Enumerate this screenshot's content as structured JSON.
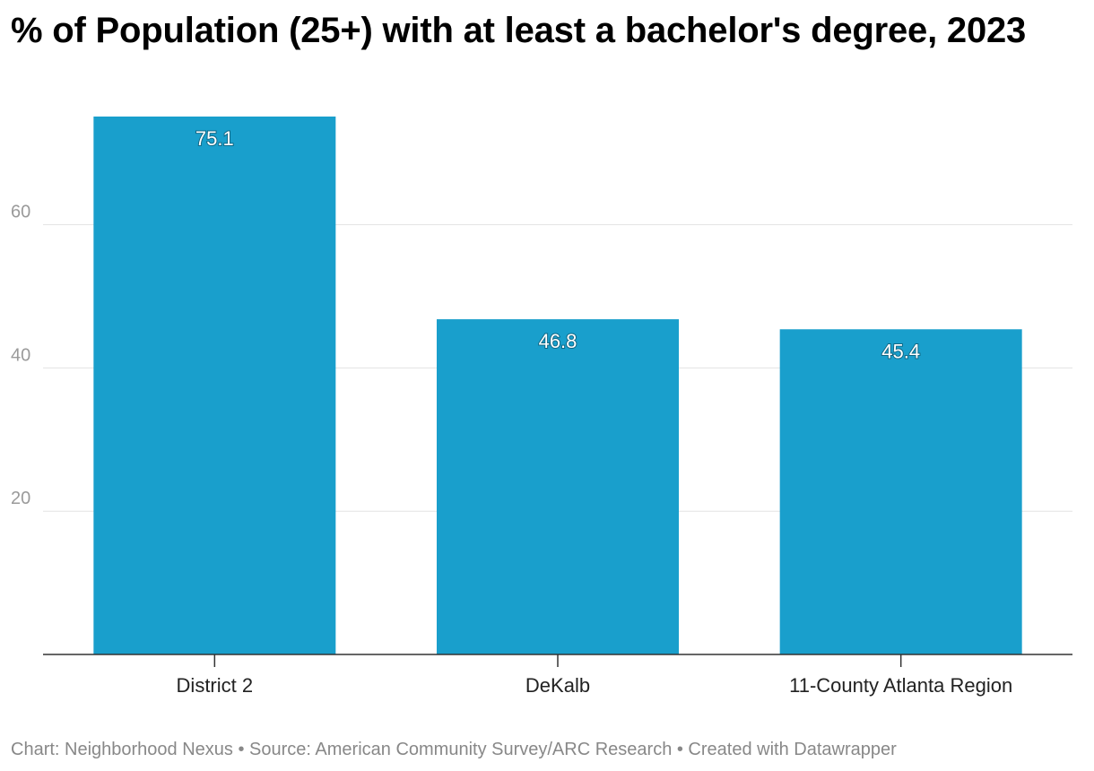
{
  "chart_data": {
    "type": "bar",
    "title": "% of Population (25+) with at least a bachelor's degree, 2023",
    "categories": [
      "District 2",
      "DeKalb",
      "11-County Atlanta Region"
    ],
    "values": [
      75.1,
      46.8,
      45.4
    ],
    "value_labels": [
      "75.1",
      "46.8",
      "45.4"
    ],
    "xlabel": "",
    "ylabel": "",
    "ylim": [
      0,
      75.1
    ],
    "yticks": [
      20,
      40,
      60
    ],
    "ytick_labels": [
      "20",
      "40",
      "60"
    ],
    "grid": true,
    "legend": "none",
    "bar_color": "#199fcc"
  },
  "footer": {
    "text": "Chart: Neighborhood Nexus • Source: American Community Survey/ARC Research • Created with Datawrapper"
  }
}
